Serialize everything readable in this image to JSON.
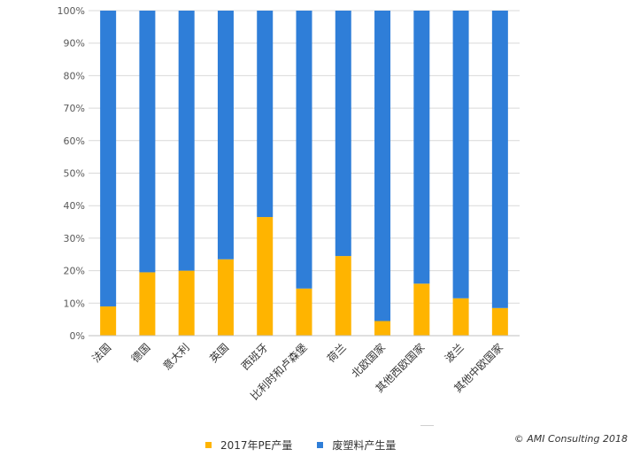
{
  "chart_data": {
    "type": "bar",
    "stacked": true,
    "normalized": true,
    "categories": [
      "法国",
      "德国",
      "意大利",
      "英国",
      "西班牙",
      "比利时和卢森堡",
      "荷兰",
      "北欧国家",
      "其他西欧国家",
      "波兰",
      "其他中欧国家"
    ],
    "series": [
      {
        "name": "2017年PE产量",
        "color": "#ffb400",
        "values": [
          9,
          19.5,
          20,
          23.5,
          36.5,
          14.5,
          24.5,
          4.5,
          16,
          11.5,
          8.5
        ]
      },
      {
        "name": "废塑料产生量",
        "color": "#2f7ed8",
        "values": [
          91,
          80.5,
          80,
          76.5,
          63.5,
          85.5,
          75.5,
          95.5,
          84,
          88.5,
          91.5
        ]
      }
    ],
    "yticks": [
      "0%",
      "10%",
      "20%",
      "30%",
      "40%",
      "50%",
      "60%",
      "70%",
      "80%",
      "90%",
      "100%"
    ],
    "ylim": [
      0,
      100
    ],
    "grid": true,
    "legend_position": "bottom"
  },
  "credit": "© AMI Consulting 2018"
}
